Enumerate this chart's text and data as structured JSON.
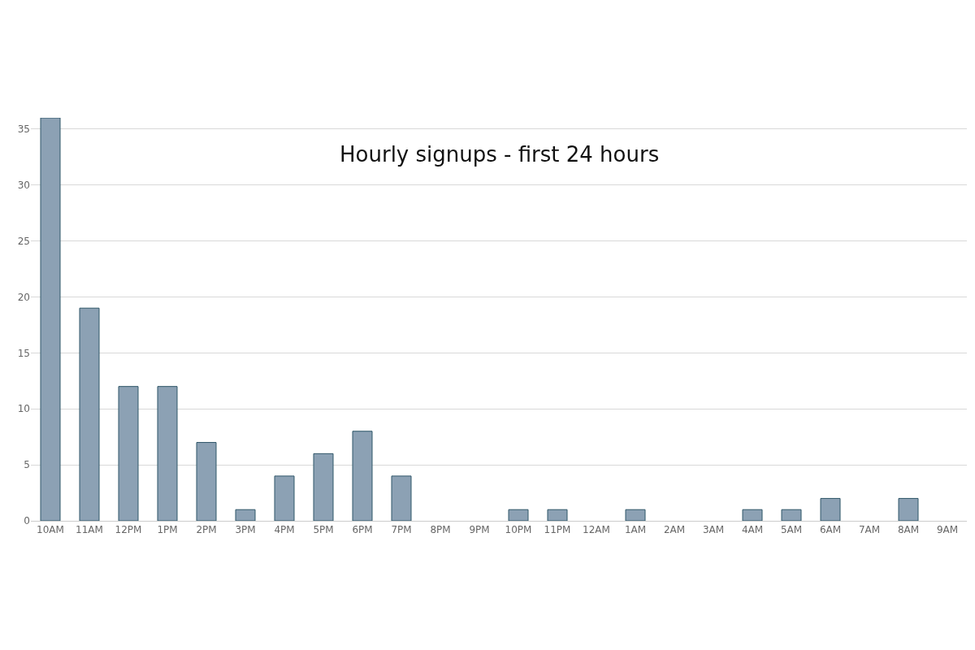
{
  "chart_data": {
    "type": "bar",
    "title": "Hourly signups - first 24 hours",
    "categories": [
      "10AM",
      "11AM",
      "12PM",
      "1PM",
      "2PM",
      "3PM",
      "4PM",
      "5PM",
      "6PM",
      "7PM",
      "8PM",
      "9PM",
      "10PM",
      "11PM",
      "12AM",
      "1AM",
      "2AM",
      "3AM",
      "4AM",
      "5AM",
      "6AM",
      "7AM",
      "8AM",
      "9AM"
    ],
    "values": [
      36,
      19,
      12,
      12,
      7,
      1,
      4,
      6,
      8,
      4,
      0,
      0,
      1,
      1,
      0,
      1,
      0,
      0,
      1,
      1,
      2,
      0,
      2,
      0
    ],
    "color": "#8ca1b4",
    "ylim": [
      0,
      36
    ],
    "yticks": [
      0,
      5,
      10,
      15,
      20,
      25,
      30,
      35
    ],
    "grid": "y",
    "legend": false
  }
}
